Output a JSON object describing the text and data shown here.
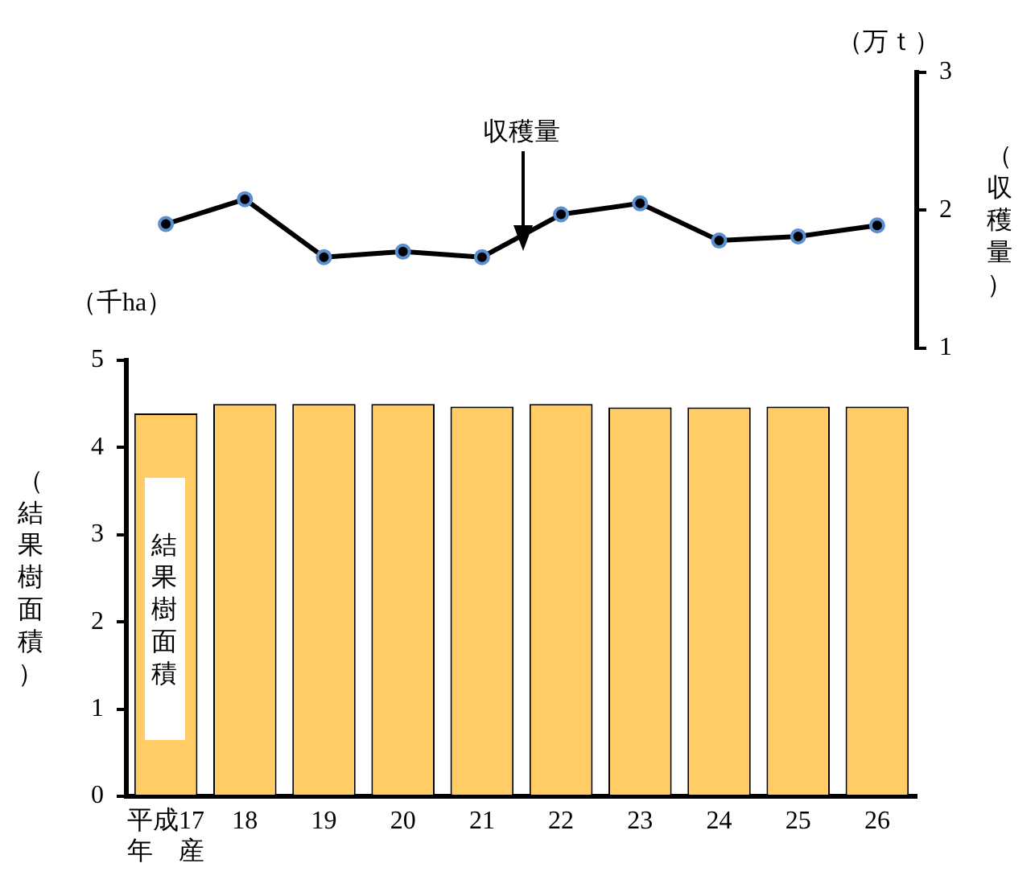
{
  "chart_data": [
    {
      "type": "line",
      "categories": [
        null,
        null,
        null,
        null,
        null,
        null,
        null,
        null,
        null,
        null
      ],
      "values": [
        1.9,
        2.08,
        1.66,
        1.7,
        1.66,
        1.97,
        2.05,
        1.78,
        1.81,
        1.89
      ],
      "color": "#000000",
      "marker": "circle",
      "ylim": [
        1,
        3
      ],
      "yticks": [
        1,
        2,
        3
      ],
      "ylabel": "（収穫量）",
      "tick_labels": "y",
      "annotations": [
        "（万ｔ）",
        "収穫量"
      ]
    },
    {
      "type": "bar",
      "categories": [
        "平成17\n年　産",
        "18",
        "19",
        "20",
        "21",
        "22",
        "23",
        "24",
        "25",
        "26"
      ],
      "values": [
        4.39,
        4.5,
        4.5,
        4.5,
        4.47,
        4.5,
        4.46,
        4.46,
        4.47,
        4.47
      ],
      "color": "#ffcc66",
      "ylim": [
        0,
        5
      ],
      "yticks": [
        0,
        1,
        2,
        3,
        4,
        5
      ],
      "ylabel": "（結果樹面積）",
      "annotations": [
        "（千ha）",
        "結果樹面積"
      ]
    }
  ]
}
